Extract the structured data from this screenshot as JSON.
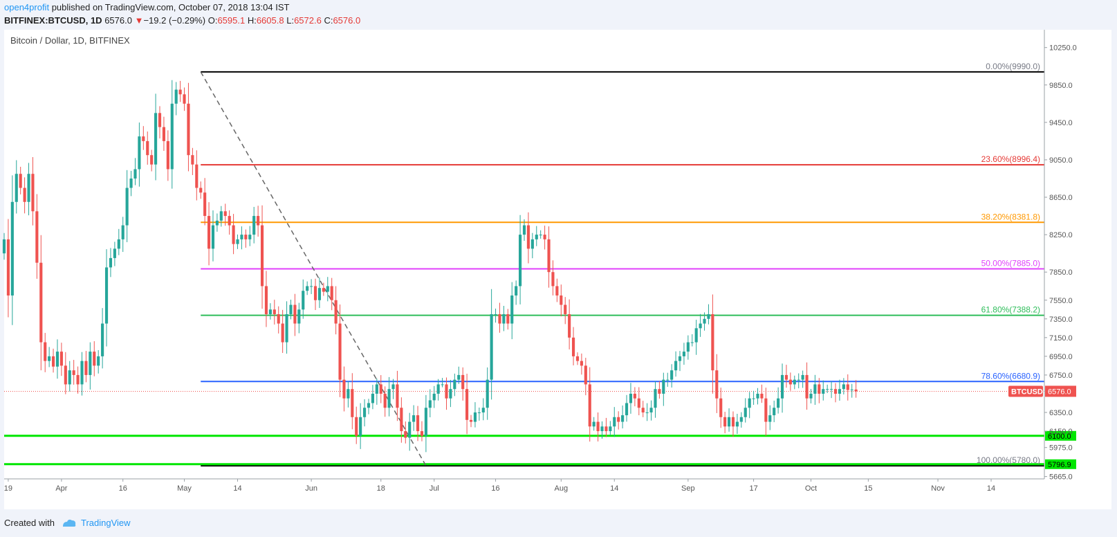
{
  "header": {
    "author": "open4profit",
    "published": "published on TradingView.com, October 07, 2018 13:04 IST",
    "symbol": "BITFINEX:BTCUSD, 1D",
    "last": "6576.0",
    "change": "−19.2 (−0.29%)",
    "o_label": "O:",
    "o_value": "6595.1",
    "h_label": "H:",
    "h_value": "6605.8",
    "l_label": "L:",
    "l_value": "6572.6",
    "c_label": "C:",
    "c_value": "6576.0"
  },
  "footer": {
    "created_with": "Created with",
    "brand": "TradingView"
  },
  "colors": {
    "up": "#26a69a",
    "down": "#ef5350",
    "background": "#ffffff",
    "price_line": "#ef5350"
  },
  "chart_data": {
    "type": "candlestick",
    "title": "Bitcoin / Dollar, 1D, BITFINEX",
    "xlabel": "",
    "ylabel": "",
    "ylim": [
      5640,
      10440
    ],
    "y_ticks": [
      "10250.0",
      "9850.0",
      "9450.0",
      "9050.0",
      "8650.0",
      "8250.0",
      "7850.0",
      "7550.0",
      "7350.0",
      "7150.0",
      "6950.0",
      "6750.0",
      "6350.0",
      "6150.0",
      "5975.0",
      "5665.0"
    ],
    "x_ticks": [
      {
        "label": "19",
        "date": "2018-03-19"
      },
      {
        "label": "Apr",
        "date": "2018-04-01"
      },
      {
        "label": "16",
        "date": "2018-04-16"
      },
      {
        "label": "May",
        "date": "2018-05-01"
      },
      {
        "label": "14",
        "date": "2018-05-14"
      },
      {
        "label": "Jun",
        "date": "2018-06-01"
      },
      {
        "label": "18",
        "date": "2018-06-18"
      },
      {
        "label": "Jul",
        "date": "2018-07-01"
      },
      {
        "label": "16",
        "date": "2018-07-16"
      },
      {
        "label": "Aug",
        "date": "2018-08-01"
      },
      {
        "label": "14",
        "date": "2018-08-14"
      },
      {
        "label": "Sep",
        "date": "2018-09-01"
      },
      {
        "label": "17",
        "date": "2018-09-17"
      },
      {
        "label": "Oct",
        "date": "2018-10-01"
      },
      {
        "label": "15",
        "date": "2018-10-15"
      },
      {
        "label": "Nov",
        "date": "2018-11-01"
      },
      {
        "label": "14",
        "date": "2018-11-14"
      }
    ],
    "x_range": [
      "2018-03-18",
      "2018-11-27"
    ],
    "series_start": "2018-03-18",
    "close": [
      8200,
      7600,
      8600,
      8900,
      8750,
      8600,
      8900,
      8500,
      7950,
      7100,
      6900,
      6950,
      6840,
      7000,
      6850,
      6650,
      6800,
      6750,
      6650,
      6900,
      6750,
      7000,
      6850,
      6950,
      7300,
      7900,
      8000,
      8100,
      8200,
      8350,
      8750,
      8850,
      8950,
      9300,
      9250,
      9100,
      9000,
      9550,
      9400,
      9250,
      8950,
      9650,
      9800,
      9750,
      9650,
      9100,
      9000,
      8750,
      8700,
      8450,
      8100,
      8350,
      8400,
      8500,
      8450,
      8350,
      8150,
      8200,
      8250,
      8200,
      8250,
      8450,
      8350,
      7700,
      7400,
      7450,
      7400,
      7300,
      7100,
      7400,
      7500,
      7300,
      7450,
      7650,
      7700,
      7700,
      7550,
      7680,
      7640,
      7700,
      7550,
      7300,
      6700,
      6500,
      6600,
      6300,
      6100,
      6300,
      6400,
      6450,
      6550,
      6650,
      6550,
      6400,
      6600,
      6650,
      6400,
      6150,
      6080,
      6250,
      6320,
      6150,
      6100,
      6400,
      6480,
      6550,
      6650,
      6650,
      6500,
      6600,
      6700,
      6750,
      6600,
      6270,
      6250,
      6350,
      6350,
      6400,
      6700,
      7400,
      7400,
      7300,
      7400,
      7300,
      7600,
      7700,
      8250,
      8350,
      8100,
      8200,
      8250,
      8250,
      8200,
      7850,
      7700,
      7600,
      7500,
      7400,
      7150,
      6950,
      6900,
      6850,
      6650,
      6200,
      6250,
      6150,
      6200,
      6150,
      6200,
      6300,
      6250,
      6320,
      6450,
      6550,
      6500,
      6400,
      6350,
      6350,
      6400,
      6600,
      6550,
      6700,
      6700,
      6800,
      6900,
      6950,
      7000,
      7100,
      7100,
      7250,
      7300,
      7350,
      7400,
      6800,
      6500,
      6300,
      6200,
      6300,
      6200,
      6250,
      6300,
      6400,
      6500,
      6500,
      6550,
      6500,
      6250,
      6320,
      6400,
      6500,
      6750,
      6700,
      6650,
      6700,
      6700,
      6750,
      6500,
      6550,
      6650,
      6550,
      6600,
      6600,
      6600,
      6550,
      6600,
      6650,
      6590,
      6595,
      6576
    ]
  },
  "fib": [
    {
      "label": "0.00%(9990.0)",
      "value": 9990,
      "color": "#000000",
      "text_color": "#787b86"
    },
    {
      "label": "23.60%(8996.4)",
      "value": 8996.4,
      "color": "#e53935",
      "text_color": "#e53935"
    },
    {
      "label": "38.20%(8381.8)",
      "value": 8381.8,
      "color": "#ff9800",
      "text_color": "#ff9800"
    },
    {
      "label": "50.00%(7885.0)",
      "value": 7885,
      "color": "#e040fb",
      "text_color": "#e040fb"
    },
    {
      "label": "61.80%(7388.2)",
      "value": 7388.2,
      "color": "#2ebd5a",
      "text_color": "#2ebd5a"
    },
    {
      "label": "78.60%(6680.9)",
      "value": 6680.9,
      "color": "#2962ff",
      "text_color": "#2962ff"
    },
    {
      "label": "100.00%(5780.0)",
      "value": 5780,
      "color": "#000000",
      "text_color": "#787b86"
    }
  ],
  "fib_start_date": "2018-05-05",
  "trend_line": [
    {
      "date": "2018-05-05",
      "value": 9990
    },
    {
      "date": "2018-06-29",
      "value": 5780
    }
  ],
  "support_lines": [
    {
      "value": 6100,
      "label": "6100.0",
      "color": "#00e600"
    },
    {
      "value": 5796.9,
      "label": "5796.9",
      "color": "#00e600"
    }
  ],
  "price_badge": {
    "symbol": "BTCUSD",
    "value": "6576.0",
    "price": 6576
  }
}
